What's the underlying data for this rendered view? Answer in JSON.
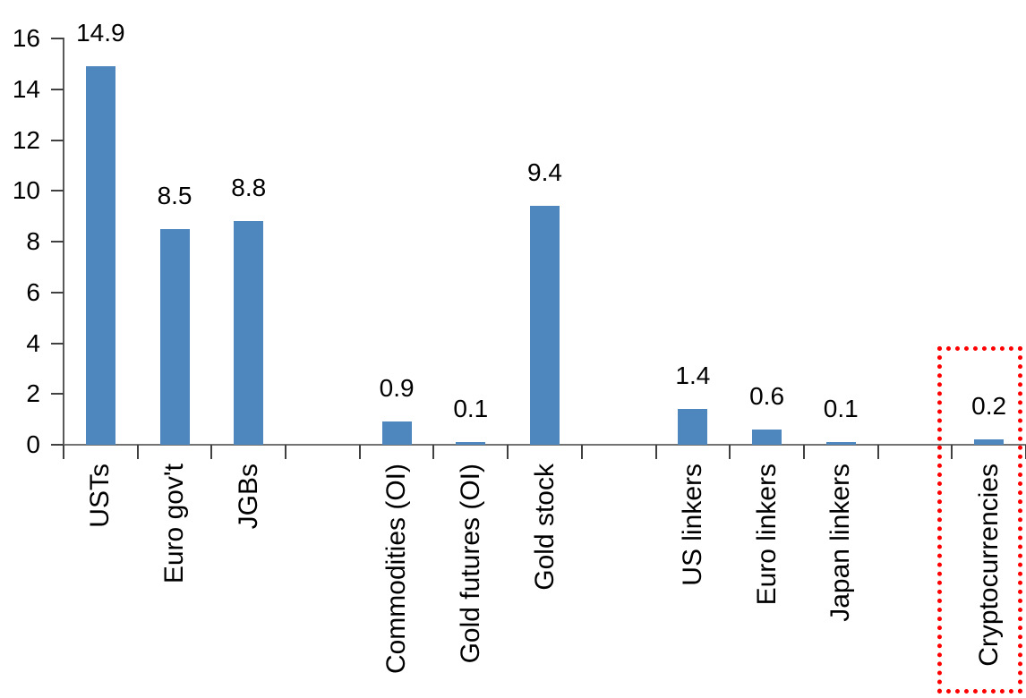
{
  "chart_data": {
    "type": "bar",
    "title": "",
    "xlabel": "",
    "ylabel": "",
    "categories": [
      "USTs",
      "Euro gov't",
      "JGBs",
      "Commodities (OI)",
      "Gold futures (OI)",
      "Gold stock",
      "US linkers",
      "Euro linkers",
      "Japan linkers",
      "Cryptocurrencies"
    ],
    "values": [
      14.9,
      8.5,
      8.8,
      0.9,
      0.1,
      9.4,
      1.4,
      0.6,
      0.1,
      0.2
    ],
    "data_labels": [
      "14.9",
      "8.5",
      "8.8",
      "0.9",
      "0.1",
      "9.4",
      "1.4",
      "0.6",
      "0.1",
      "0.2"
    ],
    "groups": [
      [
        "USTs",
        "Euro gov't",
        "JGBs"
      ],
      [
        "Commodities (OI)",
        "Gold futures (OI)",
        "Gold stock"
      ],
      [
        "US linkers",
        "Euro linkers",
        "Japan linkers"
      ],
      [
        "Cryptocurrencies"
      ]
    ],
    "slots": [
      1,
      2,
      3,
      5,
      6,
      7,
      9,
      10,
      11,
      13
    ],
    "total_slots": 13,
    "ylim": [
      0,
      16
    ],
    "yticks": [
      0,
      2,
      4,
      6,
      8,
      10,
      12,
      14,
      16
    ],
    "grid": false,
    "legend": false,
    "bar_color": "#4E87BE",
    "axis_color": "#737373",
    "tick_color": "#404040",
    "text_color": "#000000",
    "highlight": {
      "category": "Cryptocurrencies",
      "style": "red-dotted-rectangle",
      "color": "#FF0000"
    }
  }
}
